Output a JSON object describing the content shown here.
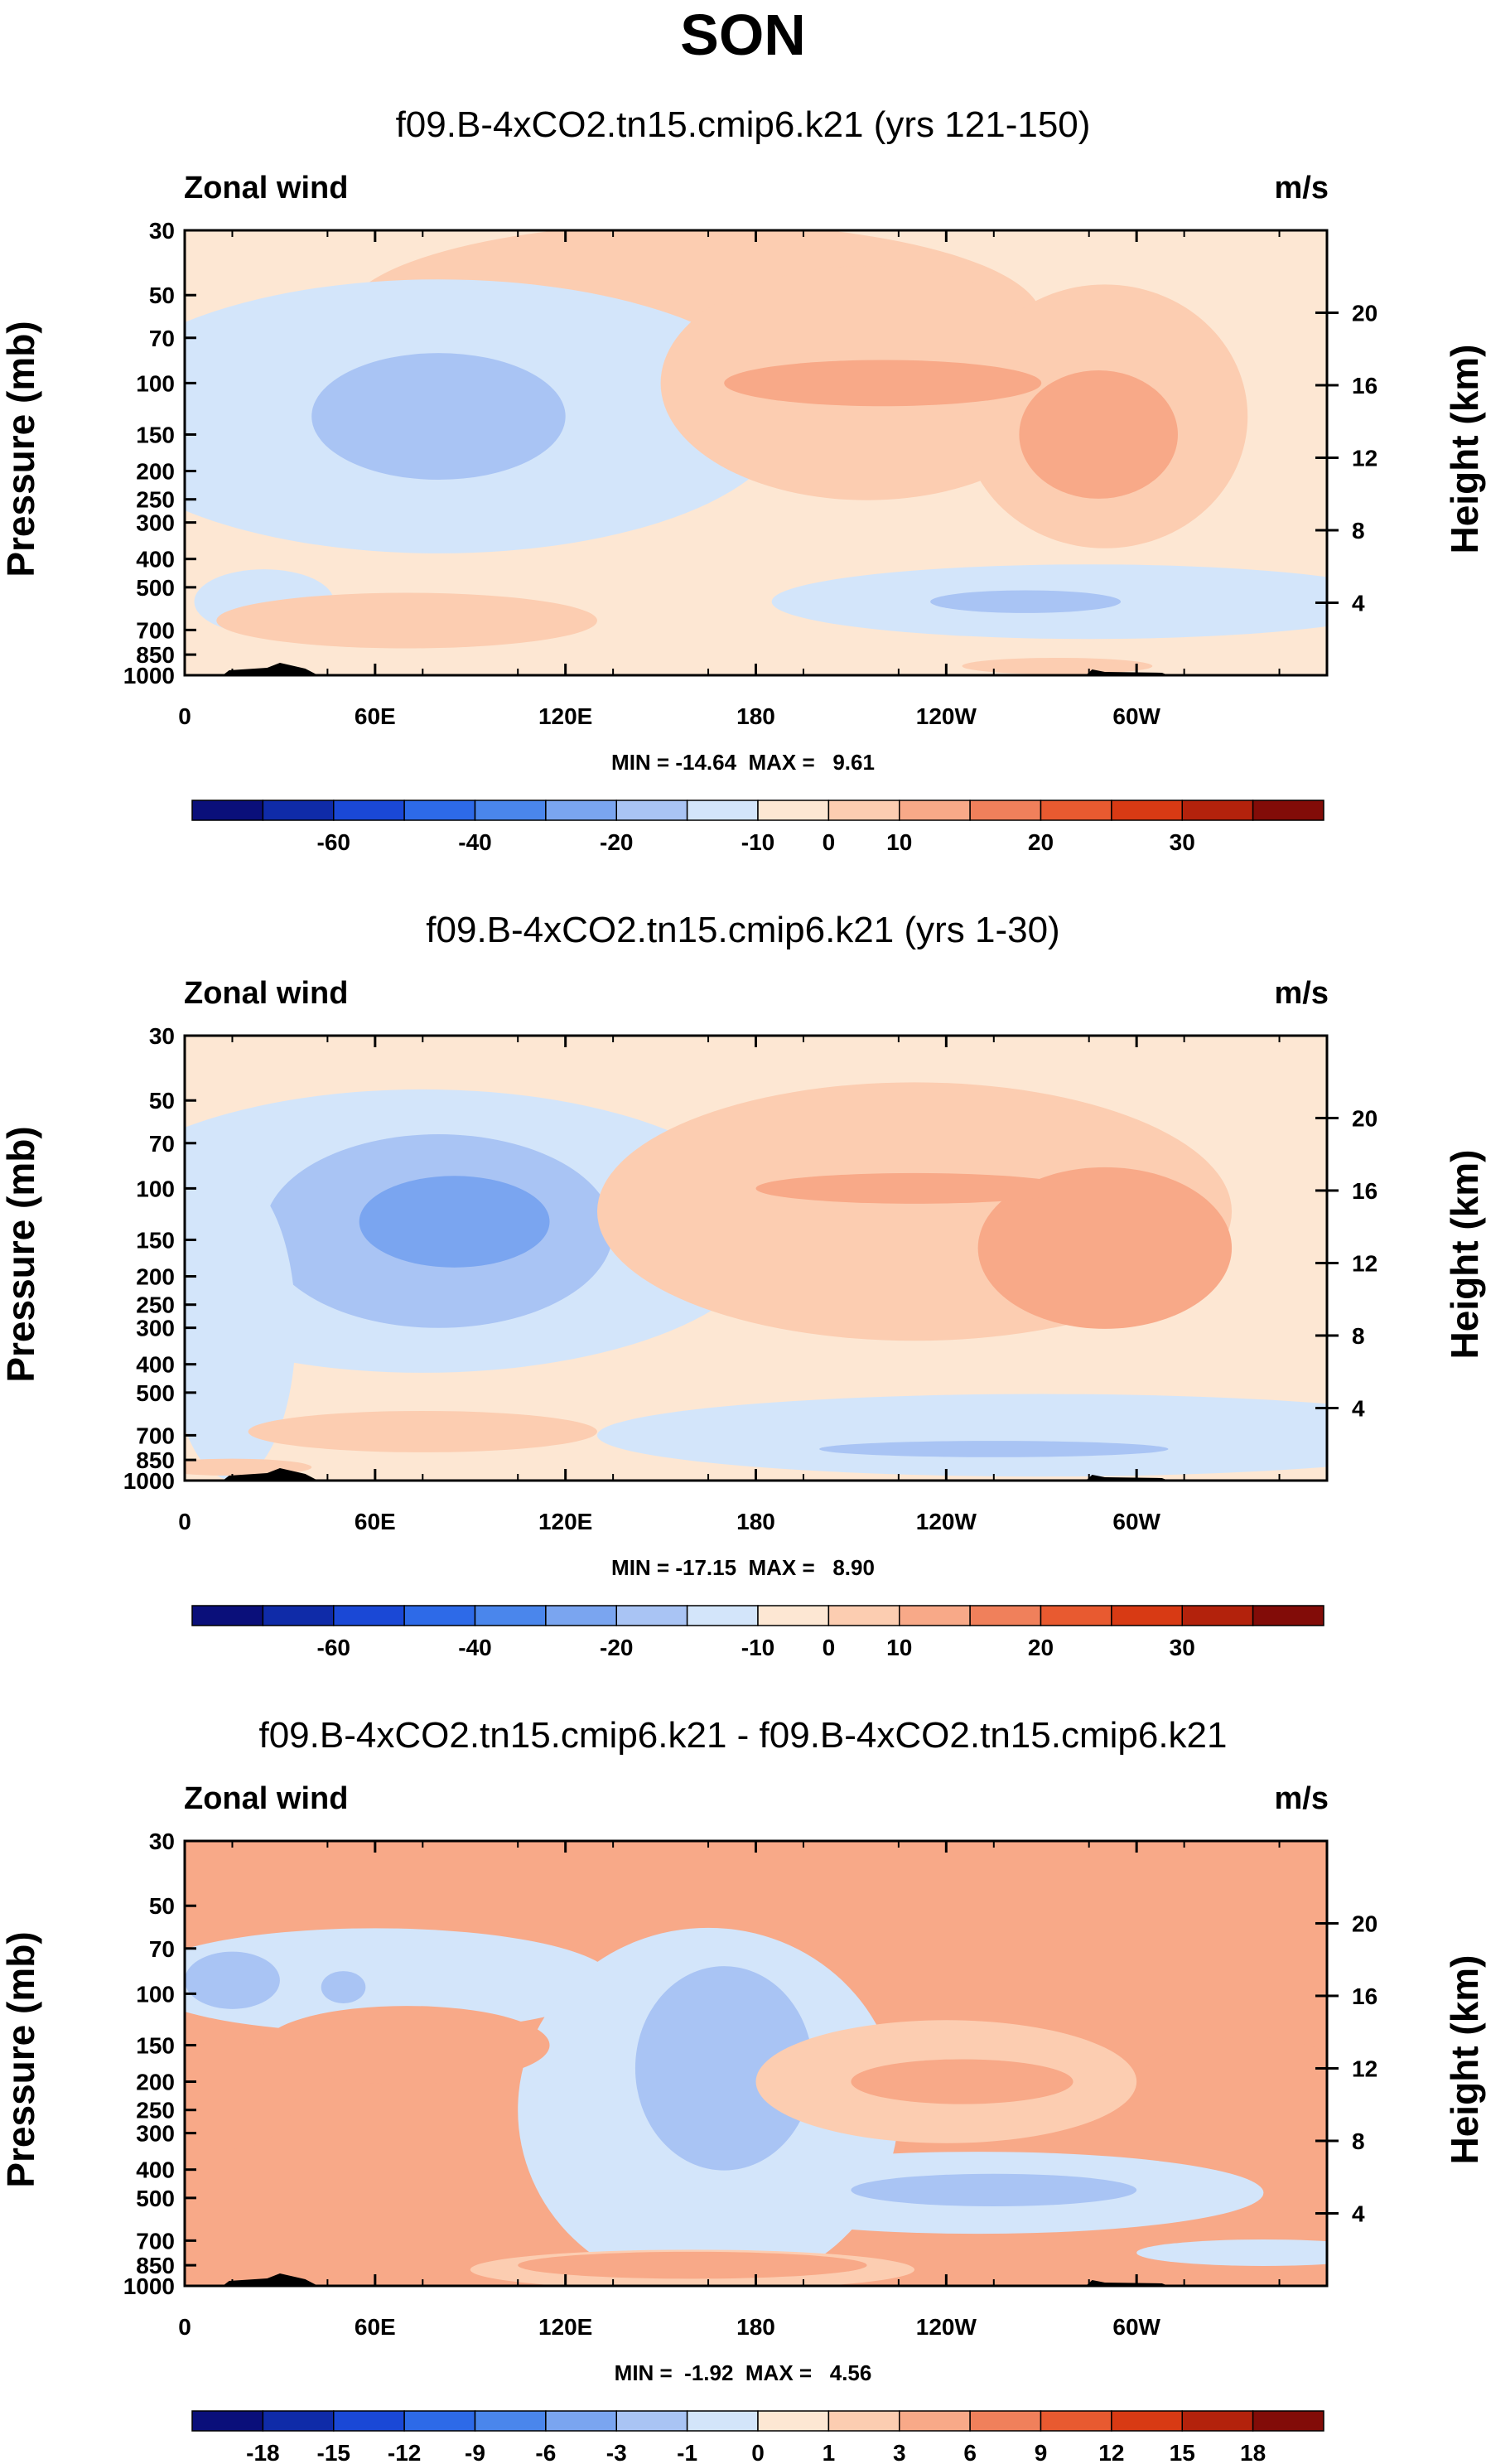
{
  "figure": {
    "main_title": "SON",
    "units_label": "m/s",
    "variable_label": "Zonal wind",
    "y_left_label": "Pressure (mb)",
    "y_right_label": "Height (km)"
  },
  "colors": {
    "neg": [
      "#0a0f7a",
      "#0f2ba8",
      "#1a48d6",
      "#2d6ae8",
      "#4a86ec",
      "#7aa5f0",
      "#a9c4f4",
      "#d3e5fa"
    ],
    "pos": [
      "#fde7d3",
      "#fccdb1",
      "#f8a988",
      "#f0805b",
      "#e85a30",
      "#d83a14",
      "#b3220c",
      "#820c08"
    ]
  },
  "chart_data": [
    {
      "type": "heatmap",
      "title": "f09.B-4xCO2.tn15.cmip6.k21 (yrs 121-150)",
      "left_label": "Zonal wind",
      "right_label": "m/s",
      "xlabel": "",
      "ylabel": "Pressure (mb)",
      "ylabel_right": "Height (km)",
      "x_ticks": [
        "0",
        "60E",
        "120E",
        "180",
        "120W",
        "60W"
      ],
      "y_ticks": [
        "30",
        "50",
        "70",
        "100",
        "150",
        "200",
        "250",
        "300",
        "400",
        "500",
        "700",
        "850",
        "1000"
      ],
      "y_right_ticks": [
        "20",
        "16",
        "12",
        "8",
        "4"
      ],
      "stats": "MIN = -14.64  MAX =   9.61",
      "min": -14.64,
      "max": 9.61,
      "colorbar_labels": [
        "-60",
        "-40",
        "-20",
        "-10",
        "0",
        "10",
        "20",
        "30"
      ],
      "blobs": [
        {
          "lon": 160,
          "p": 60,
          "rx": 110,
          "ry": 75,
          "level": 1
        },
        {
          "lon": 80,
          "p": 130,
          "rx": 110,
          "ry": 130,
          "level": -1
        },
        {
          "lon": 80,
          "p": 130,
          "rx": 40,
          "ry": 60,
          "level": -2
        },
        {
          "lon": 25,
          "p": 560,
          "rx": 22,
          "ry": 140,
          "level": -1
        },
        {
          "lon": 215,
          "p": 100,
          "rx": 65,
          "ry": 90,
          "level": 1
        },
        {
          "lon": 290,
          "p": 130,
          "rx": 45,
          "ry": 110,
          "level": 1
        },
        {
          "lon": 220,
          "p": 100,
          "rx": 50,
          "ry": 18,
          "level": 2
        },
        {
          "lon": 288,
          "p": 150,
          "rx": 25,
          "ry": 70,
          "level": 2
        },
        {
          "lon": 70,
          "p": 650,
          "rx": 60,
          "ry": 140,
          "level": 1
        },
        {
          "lon": 285,
          "p": 560,
          "rx": 100,
          "ry": 160,
          "level": -1
        },
        {
          "lon": 265,
          "p": 560,
          "rx": 30,
          "ry": 50,
          "level": -2
        },
        {
          "lon": 275,
          "p": 930,
          "rx": 30,
          "ry": 60,
          "level": 1
        }
      ]
    },
    {
      "type": "heatmap",
      "title": "f09.B-4xCO2.tn15.cmip6.k21 (yrs 1-30)",
      "left_label": "Zonal wind",
      "right_label": "m/s",
      "xlabel": "",
      "ylabel": "Pressure (mb)",
      "ylabel_right": "Height (km)",
      "x_ticks": [
        "0",
        "60E",
        "120E",
        "180",
        "120W",
        "60W"
      ],
      "y_ticks": [
        "30",
        "50",
        "70",
        "100",
        "150",
        "200",
        "250",
        "300",
        "400",
        "500",
        "700",
        "850",
        "1000"
      ],
      "y_right_ticks": [
        "20",
        "16",
        "12",
        "8",
        "4"
      ],
      "stats": "MIN = -17.15  MAX =   8.90",
      "min": -17.15,
      "max": 8.9,
      "colorbar_labels": [
        "-60",
        "-40",
        "-20",
        "-10",
        "0",
        "10",
        "20",
        "30"
      ],
      "blobs": [
        {
          "lon": 75,
          "p": 140,
          "rx": 110,
          "ry": 140,
          "level": -1
        },
        {
          "lon": 80,
          "p": 140,
          "rx": 55,
          "ry": 90,
          "level": -2
        },
        {
          "lon": 85,
          "p": 130,
          "rx": 30,
          "ry": 45,
          "level": -3
        },
        {
          "lon": 15,
          "p": 300,
          "rx": 20,
          "ry": 250,
          "level": -1
        },
        {
          "lon": 230,
          "p": 120,
          "rx": 100,
          "ry": 110,
          "level": 1
        },
        {
          "lon": 290,
          "p": 160,
          "rx": 40,
          "ry": 90,
          "level": 2
        },
        {
          "lon": 230,
          "p": 100,
          "rx": 50,
          "ry": 12,
          "level": 2
        },
        {
          "lon": 75,
          "p": 680,
          "rx": 55,
          "ry": 110,
          "level": 1
        },
        {
          "lon": 270,
          "p": 700,
          "rx": 140,
          "ry": 220,
          "level": -1
        },
        {
          "lon": 255,
          "p": 780,
          "rx": 55,
          "ry": 50,
          "level": -2
        },
        {
          "lon": 15,
          "p": 900,
          "rx": 25,
          "ry": 60,
          "level": 1
        }
      ]
    },
    {
      "type": "heatmap",
      "title": "f09.B-4xCO2.tn15.cmip6.k21 - f09.B-4xCO2.tn15.cmip6.k21",
      "left_label": "Zonal wind",
      "right_label": "m/s",
      "xlabel": "",
      "ylabel": "Pressure (mb)",
      "ylabel_right": "Height (km)",
      "x_ticks": [
        "0",
        "60E",
        "120E",
        "180",
        "120W",
        "60W"
      ],
      "y_ticks": [
        "30",
        "50",
        "70",
        "100",
        "150",
        "200",
        "250",
        "300",
        "400",
        "500",
        "700",
        "850",
        "1000"
      ],
      "y_right_ticks": [
        "20",
        "16",
        "12",
        "8",
        "4"
      ],
      "stats": "MIN =  -1.92  MAX =   4.56",
      "min": -1.92,
      "max": 4.56,
      "colorbar_labels": [
        "-18",
        "-15",
        "-12",
        "-9",
        "-6",
        "-3",
        "-1",
        "0",
        "1",
        "3",
        "6",
        "9",
        "12",
        "15",
        "18"
      ],
      "blobs": [
        {
          "lon": 60,
          "p": 90,
          "rx": 75,
          "ry": 35,
          "level": -1
        },
        {
          "lon": 15,
          "p": 90,
          "rx": 15,
          "ry": 20,
          "level": -2
        },
        {
          "lon": 50,
          "p": 95,
          "rx": 7,
          "ry": 12,
          "level": -2
        },
        {
          "lon": 165,
          "p": 250,
          "rx": 60,
          "ry": 280,
          "level": -1
        },
        {
          "lon": 170,
          "p": 180,
          "rx": 28,
          "ry": 120,
          "level": -2
        },
        {
          "lon": 250,
          "p": 480,
          "rx": 90,
          "ry": 150,
          "level": -1
        },
        {
          "lon": 255,
          "p": 470,
          "rx": 45,
          "ry": 60,
          "level": -2
        },
        {
          "lon": 340,
          "p": 770,
          "rx": 40,
          "ry": 80,
          "level": -1
        },
        {
          "lon": 160,
          "p": 880,
          "rx": 70,
          "ry": 150,
          "level": 1
        },
        {
          "lon": 160,
          "p": 850,
          "rx": 55,
          "ry": 90,
          "level": 2
        },
        {
          "lon": 70,
          "p": 150,
          "rx": 45,
          "ry": 45,
          "level": 2
        },
        {
          "lon": 15,
          "p": 220,
          "rx": 20,
          "ry": 90,
          "level": 2
        },
        {
          "lon": 240,
          "p": 200,
          "rx": 60,
          "ry": 90,
          "level": 1
        },
        {
          "lon": 245,
          "p": 200,
          "rx": 35,
          "ry": 35,
          "level": 2
        },
        {
          "lon": 335,
          "p": 210,
          "rx": 35,
          "ry": 80,
          "level": 2
        }
      ]
    }
  ]
}
